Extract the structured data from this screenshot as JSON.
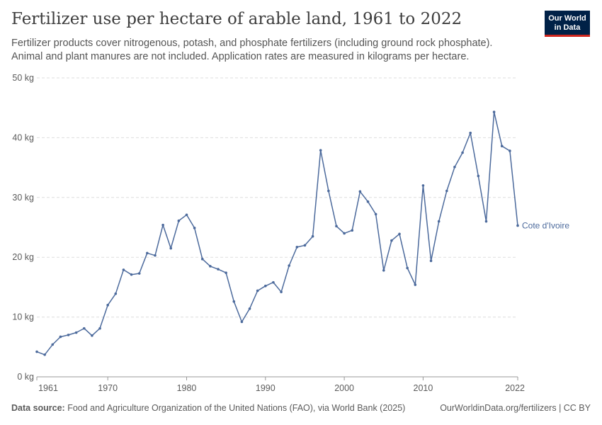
{
  "header": {
    "title": "Fertilizer use per hectare of arable land, 1961 to 2022",
    "subtitle": "Fertilizer products cover nitrogenous, potash, and phosphate fertilizers (including ground rock phosphate). Animal and plant manures are not included. Application rates are measured in kilograms per hectare."
  },
  "logo": {
    "line1": "Our World",
    "line2": "in Data",
    "bg_color": "#002147",
    "accent_color": "#ce261e"
  },
  "footer": {
    "source_label": "Data source:",
    "source_text": "Food and Agriculture Organization of the United Nations (FAO), via World Bank (2025)",
    "link_text": "OurWorldinData.org/fertilizers | CC BY"
  },
  "chart_data": {
    "type": "line",
    "xlim": [
      1961,
      2022
    ],
    "ylim": [
      0,
      50
    ],
    "y_ticks": [
      0,
      10,
      20,
      30,
      40,
      50
    ],
    "y_tick_labels": [
      "0 kg",
      "10 kg",
      "20 kg",
      "30 kg",
      "40 kg",
      "50 kg"
    ],
    "x_ticks": [
      1961,
      1970,
      1980,
      1990,
      2000,
      2010,
      2022
    ],
    "x_tick_labels": [
      "1961",
      "1970",
      "1980",
      "1990",
      "2000",
      "2010",
      "2022"
    ],
    "grid": true,
    "series": [
      {
        "name": "Cote d'Ivoire",
        "color": "#4c6a9c",
        "x": [
          1961,
          1962,
          1963,
          1964,
          1965,
          1966,
          1967,
          1968,
          1969,
          1970,
          1971,
          1972,
          1973,
          1974,
          1975,
          1976,
          1977,
          1978,
          1979,
          1980,
          1981,
          1982,
          1983,
          1984,
          1985,
          1986,
          1987,
          1988,
          1989,
          1990,
          1991,
          1992,
          1993,
          1994,
          1995,
          1996,
          1997,
          1998,
          1999,
          2000,
          2001,
          2002,
          2003,
          2004,
          2005,
          2006,
          2007,
          2008,
          2009,
          2010,
          2011,
          2012,
          2013,
          2014,
          2015,
          2016,
          2017,
          2018,
          2019,
          2020,
          2021,
          2022
        ],
        "values": [
          4.2,
          3.7,
          5.4,
          6.7,
          7.0,
          7.4,
          8.1,
          6.9,
          8.1,
          12.0,
          13.9,
          17.9,
          17.1,
          17.3,
          20.7,
          20.3,
          25.4,
          21.5,
          26.1,
          27.1,
          24.9,
          19.7,
          18.5,
          18.0,
          17.4,
          12.6,
          9.2,
          11.4,
          14.4,
          15.2,
          15.8,
          14.2,
          18.6,
          21.7,
          22.0,
          23.5,
          37.9,
          31.1,
          25.2,
          24.0,
          24.5,
          31.0,
          29.3,
          27.2,
          17.8,
          22.8,
          23.9,
          18.2,
          15.4,
          32.0,
          19.4,
          26.0,
          31.1,
          35.1,
          37.5,
          40.8,
          33.6,
          26.0,
          44.3,
          38.6,
          37.8,
          25.3
        ]
      }
    ]
  }
}
